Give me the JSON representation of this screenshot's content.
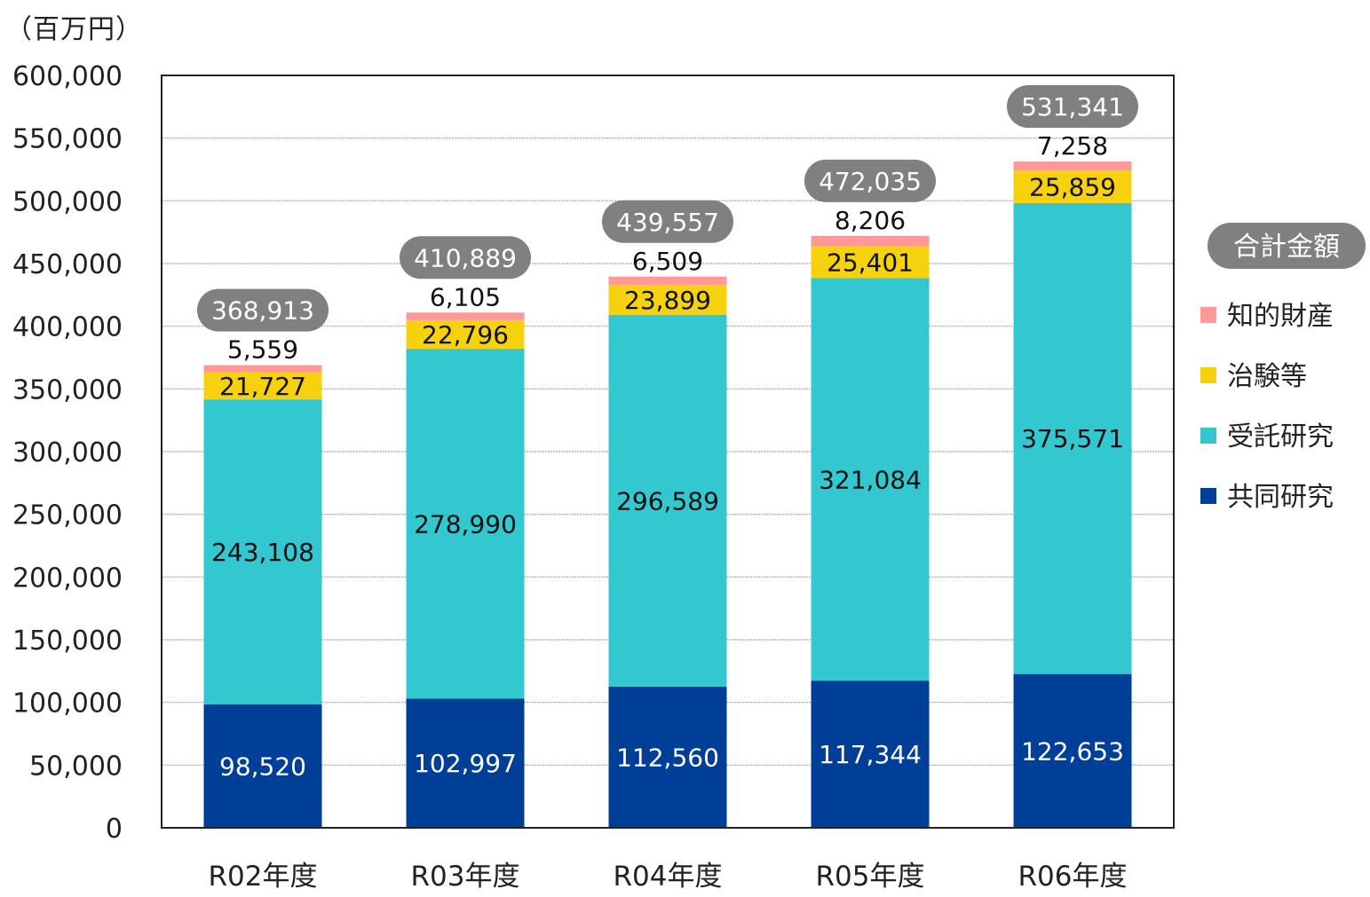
{
  "chart_data": {
    "type": "bar",
    "stacked": true,
    "title": "",
    "unit_label": "（百万円）",
    "xlabel": "",
    "ylabel": "（百万円）",
    "ylim": [
      0,
      600000
    ],
    "yticks": [
      0,
      50000,
      100000,
      150000,
      200000,
      250000,
      300000,
      350000,
      400000,
      450000,
      500000,
      550000,
      600000
    ],
    "ytick_labels": [
      "0",
      "50,000",
      "100,000",
      "150,000",
      "200,000",
      "250,000",
      "300,000",
      "350,000",
      "400,000",
      "450,000",
      "500,000",
      "550,000",
      "600,000"
    ],
    "grid": true,
    "categories": [
      "R02年度",
      "R03年度",
      "R04年度",
      "R05年度",
      "R06年度"
    ],
    "series": [
      {
        "name": "共同研究",
        "color": "#003f98",
        "label_color": "#ffffff",
        "values": [
          98520,
          102997,
          112560,
          117344,
          122653
        ],
        "labels": [
          "98,520",
          "102,997",
          "112,560",
          "117,344",
          "122,653"
        ]
      },
      {
        "name": "受託研究",
        "color": "#33c8d0",
        "label_color": "#111111",
        "values": [
          243108,
          278990,
          296589,
          321084,
          375571
        ],
        "labels": [
          "243,108",
          "278,990",
          "296,589",
          "321,084",
          "375,571"
        ]
      },
      {
        "name": "治験等",
        "color": "#f5d10e",
        "label_color": "#111111",
        "values": [
          21727,
          22796,
          23899,
          25401,
          25859
        ],
        "labels": [
          "21,727",
          "22,796",
          "23,899",
          "25,401",
          "25,859"
        ]
      },
      {
        "name": "知的財産",
        "color": "#ff9898",
        "label_color": "#111111",
        "values": [
          5559,
          6105,
          6509,
          8206,
          7258
        ],
        "labels": [
          "5,559",
          "6,105",
          "6,509",
          "8,206",
          "7,258"
        ]
      }
    ],
    "totals": {
      "name": "合計金額",
      "color": "#808080",
      "values": [
        368913,
        410889,
        439557,
        472035,
        531341
      ],
      "labels": [
        "368,913",
        "410,889",
        "439,557",
        "472,035",
        "531,341"
      ]
    },
    "legend": {
      "position": "right",
      "header": "合計金額",
      "items": [
        "知的財産",
        "治験等",
        "受託研究",
        "共同研究"
      ]
    }
  }
}
